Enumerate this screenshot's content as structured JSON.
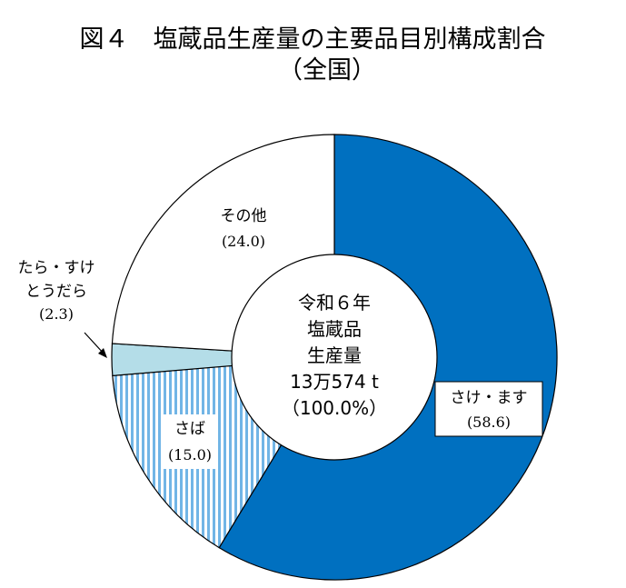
{
  "chart_data": {
    "type": "pie",
    "variant": "donut",
    "title": "図４　塩蔵品生産量の主要品目別構成割合",
    "subtitle": "（全国）",
    "center": {
      "line1": "令和６年",
      "line2": "塩蔵品",
      "line3": "生産量",
      "line4": "13万574 t",
      "line5": "（100.0%）"
    },
    "slices": [
      {
        "label": "さけ・ます",
        "value": 58.6,
        "value_label": "(58.6)",
        "color": "#0070c0",
        "pattern": "solid"
      },
      {
        "label": "さば",
        "value": 15.0,
        "value_label": "(15.0)",
        "color": "#71b5e6",
        "pattern": "vertical-stripes"
      },
      {
        "label": "たら・すけとうだら",
        "label_line1": "たら・すけ",
        "label_line2": "とうだら",
        "value": 2.3,
        "value_label": "(2.3)",
        "color": "#b4dde8",
        "pattern": "solid"
      },
      {
        "label": "その他",
        "value": 24.0,
        "value_label": "(24.0)",
        "color": "#ffffff",
        "pattern": "solid"
      }
    ]
  }
}
